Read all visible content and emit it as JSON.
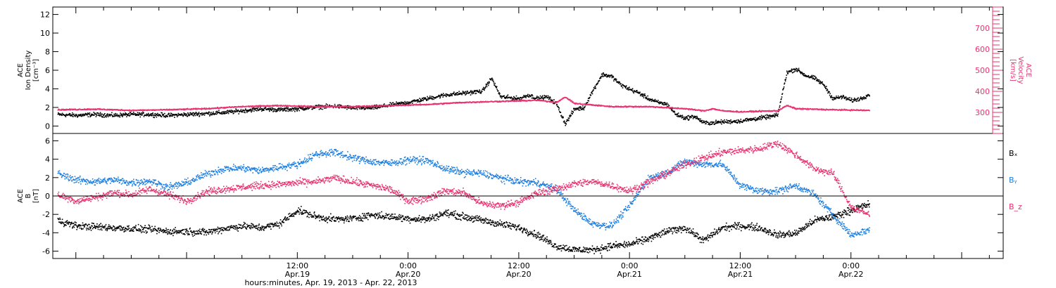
{
  "chart_data": {
    "type": "scatter",
    "x_axis": {
      "label": "hours:minutes, Apr. 19, 2013 - Apr. 22, 2013",
      "range_hours": [
        -14.5,
        88.5
      ],
      "ticks": [
        {
          "t": 12,
          "time": "12:00",
          "date": "Apr.19"
        },
        {
          "t": 24,
          "time": "0:00",
          "date": "Apr.20"
        },
        {
          "t": 36,
          "time": "12:00",
          "date": "Apr.20"
        },
        {
          "t": 48,
          "time": "0:00",
          "date": "Apr.21"
        },
        {
          "t": 60,
          "time": "12:00",
          "date": "Apr.21"
        },
        {
          "t": 72,
          "time": "0:00",
          "date": "Apr.22"
        }
      ]
    },
    "panels": [
      {
        "name": "plasma",
        "left_axis": {
          "label_lines": [
            "ACE",
            "Ion Density",
            "[cm⁻³]"
          ],
          "range": [
            -0.8,
            12.8
          ],
          "ticks": [
            0,
            2,
            4,
            6,
            8,
            10,
            12
          ],
          "color": "#000000"
        },
        "right_axis": {
          "label_lines": [
            "ACE",
            "Velocity",
            "[km/s]"
          ],
          "range": [
            200,
            800
          ],
          "ticks": [
            300,
            400,
            500,
            600,
            700
          ],
          "color": "#e8336e"
        },
        "series": [
          {
            "axis": "left",
            "color": "#000000",
            "points": [
              [
                -14,
                1.3
              ],
              [
                -12,
                1.2
              ],
              [
                -10,
                1.3
              ],
              [
                -8,
                1.2
              ],
              [
                -6,
                1.3
              ],
              [
                -4,
                1.3
              ],
              [
                -2,
                1.2
              ],
              [
                0,
                1.3
              ],
              [
                2,
                1.4
              ],
              [
                4,
                1.5
              ],
              [
                6,
                1.7
              ],
              [
                8,
                1.9
              ],
              [
                10,
                1.8
              ],
              [
                12,
                1.9
              ],
              [
                14,
                2.1
              ],
              [
                16,
                2.2
              ],
              [
                18,
                2.0
              ],
              [
                20,
                2.0
              ],
              [
                22,
                2.3
              ],
              [
                24,
                2.6
              ],
              [
                26,
                3.0
              ],
              [
                28,
                3.4
              ],
              [
                30,
                3.6
              ],
              [
                32,
                3.8
              ],
              [
                33,
                5.2
              ],
              [
                34,
                3.2
              ],
              [
                36,
                3.0
              ],
              [
                37,
                3.4
              ],
              [
                38,
                3.0
              ],
              [
                39,
                3.2
              ],
              [
                40,
                2.5
              ],
              [
                41,
                0.3
              ],
              [
                42,
                1.9
              ],
              [
                43,
                2.0
              ],
              [
                44,
                3.9
              ],
              [
                45,
                5.6
              ],
              [
                46,
                5.4
              ],
              [
                47,
                4.5
              ],
              [
                48,
                4.0
              ],
              [
                49,
                3.6
              ],
              [
                50,
                3.0
              ],
              [
                51,
                2.6
              ],
              [
                52,
                2.4
              ],
              [
                53,
                1.3
              ],
              [
                54,
                0.9
              ],
              [
                55,
                1.1
              ],
              [
                56,
                0.4
              ],
              [
                57,
                0.4
              ],
              [
                58,
                0.5
              ],
              [
                60,
                0.6
              ],
              [
                62,
                0.9
              ],
              [
                64,
                1.2
              ],
              [
                65,
                5.8
              ],
              [
                66,
                6.2
              ],
              [
                67,
                5.5
              ],
              [
                68,
                5.2
              ],
              [
                69,
                4.5
              ],
              [
                70,
                3.0
              ],
              [
                71,
                3.2
              ],
              [
                72,
                2.8
              ],
              [
                73,
                3.0
              ],
              [
                74,
                3.5
              ]
            ]
          },
          {
            "axis": "right",
            "color": "#e8336e",
            "points": [
              [
                -14,
                315
              ],
              [
                -10,
                318
              ],
              [
                -6,
                312
              ],
              [
                -2,
                315
              ],
              [
                2,
                320
              ],
              [
                6,
                330
              ],
              [
                10,
                335
              ],
              [
                14,
                330
              ],
              [
                18,
                330
              ],
              [
                22,
                335
              ],
              [
                26,
                340
              ],
              [
                30,
                350
              ],
              [
                34,
                355
              ],
              [
                38,
                360
              ],
              [
                40,
                350
              ],
              [
                41,
                375
              ],
              [
                42,
                345
              ],
              [
                46,
                330
              ],
              [
                50,
                330
              ],
              [
                54,
                320
              ],
              [
                56,
                310
              ],
              [
                57,
                320
              ],
              [
                58,
                310
              ],
              [
                60,
                305
              ],
              [
                62,
                308
              ],
              [
                64,
                310
              ],
              [
                65,
                335
              ],
              [
                66,
                320
              ],
              [
                70,
                315
              ],
              [
                74,
                312
              ]
            ]
          }
        ]
      },
      {
        "name": "magnetic",
        "left_axis": {
          "label_lines": [
            "ACE",
            "B",
            "[nT]"
          ],
          "range": [
            -6.8,
            6.8
          ],
          "ticks": [
            -6,
            -4,
            -2,
            0,
            2,
            4,
            6
          ],
          "color": "#000000"
        },
        "zero_line": true,
        "legend": [
          "Bₓ",
          "Bᵧ",
          "B_z"
        ],
        "series": [
          {
            "name": "Bₓ",
            "color": "#000000",
            "points": [
              [
                -14,
                -2.6
              ],
              [
                -12,
                -3.2
              ],
              [
                -10,
                -3.3
              ],
              [
                -8,
                -3.4
              ],
              [
                -6,
                -3.5
              ],
              [
                -4,
                -3.6
              ],
              [
                -2,
                -3.8
              ],
              [
                0,
                -3.8
              ],
              [
                2,
                -3.9
              ],
              [
                4,
                -3.5
              ],
              [
                6,
                -3.2
              ],
              [
                8,
                -3.4
              ],
              [
                10,
                -3.0
              ],
              [
                12,
                -1.5
              ],
              [
                14,
                -2.2
              ],
              [
                16,
                -2.5
              ],
              [
                18,
                -2.4
              ],
              [
                20,
                -2.0
              ],
              [
                22,
                -2.2
              ],
              [
                24,
                -2.4
              ],
              [
                26,
                -2.5
              ],
              [
                28,
                -1.8
              ],
              [
                30,
                -2.2
              ],
              [
                32,
                -2.6
              ],
              [
                34,
                -3.0
              ],
              [
                36,
                -3.4
              ],
              [
                38,
                -4.2
              ],
              [
                40,
                -5.4
              ],
              [
                42,
                -5.8
              ],
              [
                44,
                -5.8
              ],
              [
                46,
                -5.4
              ],
              [
                48,
                -5.2
              ],
              [
                50,
                -4.6
              ],
              [
                52,
                -3.8
              ],
              [
                54,
                -3.4
              ],
              [
                56,
                -4.8
              ],
              [
                58,
                -3.4
              ],
              [
                60,
                -3.2
              ],
              [
                62,
                -3.4
              ],
              [
                64,
                -4.2
              ],
              [
                66,
                -4.0
              ],
              [
                68,
                -2.6
              ],
              [
                70,
                -2.2
              ],
              [
                72,
                -1.5
              ],
              [
                74,
                -0.8
              ]
            ]
          },
          {
            "name": "Bᵧ",
            "color": "#1f7fe0",
            "points": [
              [
                -14,
                2.5
              ],
              [
                -12,
                1.8
              ],
              [
                -10,
                1.6
              ],
              [
                -8,
                1.8
              ],
              [
                -6,
                1.5
              ],
              [
                -4,
                1.7
              ],
              [
                -2,
                1.0
              ],
              [
                0,
                1.5
              ],
              [
                2,
                2.4
              ],
              [
                4,
                3.0
              ],
              [
                6,
                3.1
              ],
              [
                8,
                2.8
              ],
              [
                10,
                3.2
              ],
              [
                12,
                3.5
              ],
              [
                14,
                4.6
              ],
              [
                16,
                4.8
              ],
              [
                18,
                4.2
              ],
              [
                20,
                3.8
              ],
              [
                22,
                3.6
              ],
              [
                24,
                4.0
              ],
              [
                26,
                3.9
              ],
              [
                28,
                3.0
              ],
              [
                30,
                2.6
              ],
              [
                32,
                2.5
              ],
              [
                34,
                2.0
              ],
              [
                36,
                1.6
              ],
              [
                38,
                1.5
              ],
              [
                40,
                0.8
              ],
              [
                42,
                -1.5
              ],
              [
                44,
                -3.0
              ],
              [
                46,
                -3.2
              ],
              [
                48,
                -1.0
              ],
              [
                50,
                2.0
              ],
              [
                52,
                2.6
              ],
              [
                54,
                3.8
              ],
              [
                56,
                3.5
              ],
              [
                58,
                3.5
              ],
              [
                60,
                1.2
              ],
              [
                62,
                0.6
              ],
              [
                64,
                0.6
              ],
              [
                66,
                1.2
              ],
              [
                68,
                0.2
              ],
              [
                70,
                -2.0
              ],
              [
                72,
                -4.2
              ],
              [
                74,
                -3.6
              ]
            ]
          },
          {
            "name": "B_z",
            "color": "#e8336e",
            "points": [
              [
                -14,
                0.2
              ],
              [
                -12,
                -0.5
              ],
              [
                -10,
                -0.1
              ],
              [
                -8,
                0.4
              ],
              [
                -6,
                0.2
              ],
              [
                -4,
                0.8
              ],
              [
                -2,
                0.2
              ],
              [
                0,
                -0.5
              ],
              [
                2,
                0.5
              ],
              [
                4,
                0.8
              ],
              [
                6,
                1.0
              ],
              [
                8,
                1.2
              ],
              [
                10,
                1.3
              ],
              [
                12,
                1.5
              ],
              [
                14,
                1.6
              ],
              [
                16,
                2.0
              ],
              [
                18,
                1.6
              ],
              [
                20,
                1.2
              ],
              [
                22,
                0.8
              ],
              [
                24,
                -0.5
              ],
              [
                26,
                -0.2
              ],
              [
                28,
                0.6
              ],
              [
                30,
                0.4
              ],
              [
                32,
                -0.8
              ],
              [
                34,
                -1.0
              ],
              [
                36,
                -0.6
              ],
              [
                38,
                0.4
              ],
              [
                40,
                0.8
              ],
              [
                42,
                1.4
              ],
              [
                44,
                1.6
              ],
              [
                46,
                1.2
              ],
              [
                48,
                0.6
              ],
              [
                50,
                1.5
              ],
              [
                52,
                2.5
              ],
              [
                54,
                3.5
              ],
              [
                56,
                4.2
              ],
              [
                58,
                4.8
              ],
              [
                60,
                5.0
              ],
              [
                62,
                5.2
              ],
              [
                64,
                5.8
              ],
              [
                66,
                4.5
              ],
              [
                68,
                3.0
              ],
              [
                70,
                2.5
              ],
              [
                72,
                -1.2
              ],
              [
                74,
                -2.0
              ]
            ]
          }
        ]
      }
    ]
  }
}
